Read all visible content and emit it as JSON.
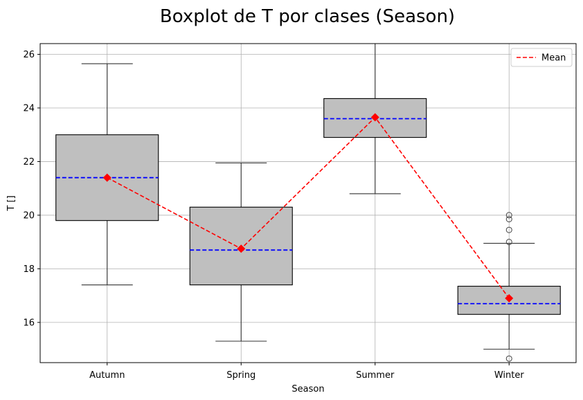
{
  "chart_data": {
    "type": "boxplot",
    "title": "Boxplot de T por clases (Season)",
    "xlabel": "Season",
    "ylabel": "T []",
    "ylim": [
      14.5,
      26.4
    ],
    "yticks": [
      16,
      18,
      20,
      22,
      24,
      26
    ],
    "grid": true,
    "legend": {
      "position": "top-right",
      "entries": [
        "Mean"
      ]
    },
    "categories": [
      "Autumn",
      "Spring",
      "Summer",
      "Winter"
    ],
    "boxes": [
      {
        "category": "Autumn",
        "whisker_low": 17.4,
        "q1": 19.8,
        "median": 21.4,
        "q3": 23.0,
        "whisker_high": 25.65,
        "outliers": []
      },
      {
        "category": "Spring",
        "whisker_low": 15.3,
        "q1": 17.4,
        "median": 18.7,
        "q3": 20.3,
        "whisker_high": 21.95,
        "outliers": []
      },
      {
        "category": "Summer",
        "whisker_low": 20.8,
        "q1": 22.9,
        "median": 23.6,
        "q3": 24.35,
        "whisker_high": 26.45,
        "outliers": []
      },
      {
        "category": "Winter",
        "whisker_low": 15.0,
        "q1": 16.3,
        "median": 16.7,
        "q3": 17.35,
        "whisker_high": 18.95,
        "outliers": [
          19.0,
          19.45,
          19.85,
          20.0,
          14.65
        ]
      }
    ],
    "means": [
      21.4,
      18.75,
      23.65,
      16.9
    ],
    "colors": {
      "box_fill": "#bfbfbf",
      "median": "#0000ff",
      "mean": "#ff0000",
      "whisker": "#333333",
      "grid": "#b0b0b0"
    }
  }
}
